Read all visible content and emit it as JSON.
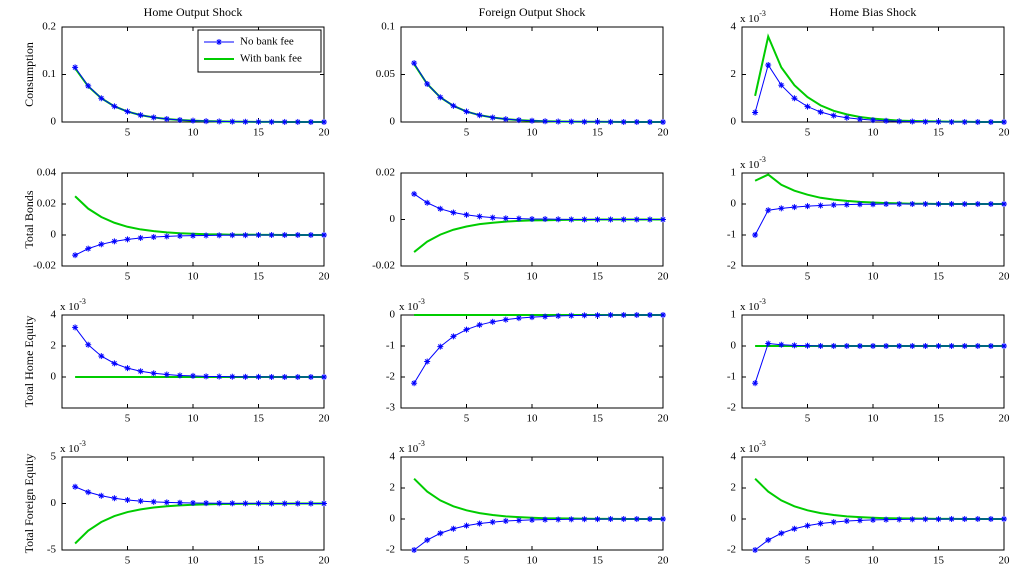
{
  "chart_data": [
    {
      "type": "line",
      "title": "Home Output Shock",
      "y_label": "Consumption",
      "legend": "upper right",
      "x": [
        1,
        2,
        3,
        4,
        5,
        6,
        7,
        8,
        9,
        10,
        11,
        12,
        13,
        14,
        15,
        16,
        17,
        18,
        19,
        20
      ],
      "xlim": [
        0,
        20
      ],
      "xticks": [
        5,
        10,
        15,
        20
      ],
      "ylim": [
        0,
        0.2
      ],
      "yticks": [
        0,
        0.1,
        0.2
      ],
      "series": [
        {
          "name": "No bank fee",
          "color": "#0000ff",
          "marker": "*",
          "values": [
            0.115,
            0.076,
            0.05,
            0.033,
            0.022,
            0.0145,
            0.0096,
            0.0063,
            0.0042,
            0.0028,
            0.0018,
            0.0012,
            0.0008,
            0.0005,
            0.0003,
            0.0002,
            0.0001,
            0.0001,
            0,
            0
          ]
        },
        {
          "name": "With bank fee",
          "color": "#00cc00",
          "values": [
            0.113,
            0.075,
            0.05,
            0.033,
            0.022,
            0.0145,
            0.0096,
            0.0063,
            0.0042,
            0.0028,
            0.0018,
            0.0012,
            0.0008,
            0.0005,
            0.0003,
            0.0002,
            0.0001,
            0.0001,
            0,
            0
          ]
        }
      ]
    },
    {
      "type": "line",
      "title": "Foreign Output Shock",
      "x": [
        1,
        2,
        3,
        4,
        5,
        6,
        7,
        8,
        9,
        10,
        11,
        12,
        13,
        14,
        15,
        16,
        17,
        18,
        19,
        20
      ],
      "xlim": [
        0,
        20
      ],
      "xticks": [
        5,
        10,
        15,
        20
      ],
      "ylim": [
        0,
        0.1
      ],
      "yticks": [
        0,
        0.05,
        0.1
      ],
      "series": [
        {
          "color": "#0000ff",
          "marker": "*",
          "values": [
            0.062,
            0.04,
            0.026,
            0.017,
            0.011,
            0.0072,
            0.0047,
            0.003,
            0.002,
            0.0013,
            0.0008,
            0.0005,
            0.0004,
            0.0002,
            0.0002,
            0.0001,
            0,
            0,
            0,
            0
          ]
        },
        {
          "color": "#00cc00",
          "values": [
            0.061,
            0.04,
            0.026,
            0.017,
            0.011,
            0.0072,
            0.0047,
            0.003,
            0.002,
            0.0013,
            0.0008,
            0.0005,
            0.0004,
            0.0002,
            0.0002,
            0.0001,
            0,
            0,
            0,
            0
          ]
        }
      ]
    },
    {
      "type": "line",
      "title": "Home Bias Shock",
      "y_scale": {
        "text": "x 10",
        "exponent": "-3"
      },
      "x": [
        1,
        2,
        3,
        4,
        5,
        6,
        7,
        8,
        9,
        10,
        11,
        12,
        13,
        14,
        15,
        16,
        17,
        18,
        19,
        20
      ],
      "xlim": [
        0,
        20
      ],
      "xticks": [
        5,
        10,
        15,
        20
      ],
      "ylim": [
        0,
        4
      ],
      "yticks": [
        0,
        2,
        4
      ],
      "series": [
        {
          "color": "#0000ff",
          "marker": "*",
          "values": [
            0.4,
            2.4,
            1.55,
            1.0,
            0.65,
            0.42,
            0.27,
            0.18,
            0.12,
            0.08,
            0.05,
            0.03,
            0.02,
            0.01,
            0.01,
            0,
            0,
            0,
            0,
            0
          ]
        },
        {
          "color": "#00cc00",
          "values": [
            1.1,
            3.6,
            2.3,
            1.55,
            1.05,
            0.7,
            0.47,
            0.32,
            0.21,
            0.14,
            0.1,
            0.06,
            0.04,
            0.03,
            0.02,
            0.01,
            0.01,
            0,
            0,
            0
          ]
        }
      ]
    },
    {
      "type": "line",
      "y_label": "Total Bonds",
      "x": [
        1,
        2,
        3,
        4,
        5,
        6,
        7,
        8,
        9,
        10,
        11,
        12,
        13,
        14,
        15,
        16,
        17,
        18,
        19,
        20
      ],
      "xlim": [
        0,
        20
      ],
      "xticks": [
        5,
        10,
        15,
        20
      ],
      "ylim": [
        -0.02,
        0.04
      ],
      "yticks": [
        -0.02,
        0,
        0.02,
        0.04
      ],
      "series": [
        {
          "color": "#0000ff",
          "marker": "*",
          "values": [
            -0.013,
            -0.0088,
            -0.006,
            -0.0041,
            -0.0028,
            -0.0019,
            -0.0013,
            -0.0009,
            -0.0006,
            -0.0004,
            -0.0003,
            -0.0002,
            -0.0001,
            -0.0001,
            0,
            0,
            0,
            0,
            0,
            0
          ]
        },
        {
          "color": "#00cc00",
          "values": [
            0.025,
            0.017,
            0.0116,
            0.0079,
            0.0053,
            0.0036,
            0.0025,
            0.0017,
            0.0011,
            0.0008,
            0.0005,
            0.0004,
            0.0002,
            0.0002,
            0.0001,
            0.0001,
            0,
            0,
            0,
            0
          ]
        }
      ]
    },
    {
      "type": "line",
      "x": [
        1,
        2,
        3,
        4,
        5,
        6,
        7,
        8,
        9,
        10,
        11,
        12,
        13,
        14,
        15,
        16,
        17,
        18,
        19,
        20
      ],
      "xlim": [
        0,
        20
      ],
      "xticks": [
        5,
        10,
        15,
        20
      ],
      "ylim": [
        -0.02,
        0.02
      ],
      "yticks": [
        -0.02,
        0,
        0.02
      ],
      "series": [
        {
          "color": "#0000ff",
          "marker": "*",
          "values": [
            0.011,
            0.0072,
            0.0046,
            0.003,
            0.002,
            0.0013,
            0.0008,
            0.0005,
            0.0004,
            0.0002,
            0.0002,
            0.0001,
            0,
            0,
            0,
            0,
            0,
            0,
            0,
            0
          ]
        },
        {
          "color": "#00cc00",
          "values": [
            -0.014,
            -0.0095,
            -0.0065,
            -0.0044,
            -0.003,
            -0.002,
            -0.0014,
            -0.0009,
            -0.0006,
            -0.0004,
            -0.0003,
            -0.0002,
            -0.0001,
            -0.0001,
            0,
            0,
            0,
            0,
            0,
            0
          ]
        }
      ]
    },
    {
      "type": "line",
      "y_scale": {
        "text": "x 10",
        "exponent": "-3"
      },
      "x": [
        1,
        2,
        3,
        4,
        5,
        6,
        7,
        8,
        9,
        10,
        11,
        12,
        13,
        14,
        15,
        16,
        17,
        18,
        19,
        20
      ],
      "xlim": [
        0,
        20
      ],
      "xticks": [
        5,
        10,
        15,
        20
      ],
      "ylim": [
        -2,
        1
      ],
      "yticks": [
        -2,
        -1,
        0,
        1
      ],
      "series": [
        {
          "color": "#0000ff",
          "marker": "*",
          "values": [
            -1,
            -0.2,
            -0.14,
            -0.1,
            -0.07,
            -0.05,
            -0.03,
            -0.02,
            -0.01,
            -0.01,
            0,
            0,
            0,
            0,
            0,
            0,
            0,
            0,
            0,
            0
          ]
        },
        {
          "color": "#00cc00",
          "values": [
            0.75,
            0.95,
            0.62,
            0.43,
            0.3,
            0.2,
            0.14,
            0.1,
            0.07,
            0.05,
            0.03,
            0.02,
            0.01,
            0.01,
            0,
            0,
            0,
            0,
            0,
            0
          ]
        }
      ]
    },
    {
      "type": "line",
      "y_label": "Total Home Equity",
      "y_scale": {
        "text": "x 10",
        "exponent": "-3"
      },
      "x": [
        1,
        2,
        3,
        4,
        5,
        6,
        7,
        8,
        9,
        10,
        11,
        12,
        13,
        14,
        15,
        16,
        17,
        18,
        19,
        20
      ],
      "xlim": [
        0,
        20
      ],
      "xticks": [
        5,
        10,
        15,
        20
      ],
      "ylim": [
        -2,
        4
      ],
      "yticks": [
        0,
        2,
        4
      ],
      "series": [
        {
          "color": "#0000ff",
          "marker": "*",
          "values": [
            3.2,
            2.08,
            1.35,
            0.88,
            0.57,
            0.37,
            0.24,
            0.16,
            0.1,
            0.07,
            0.04,
            0.03,
            0.02,
            0.01,
            0.01,
            0,
            0,
            0,
            0,
            0
          ]
        },
        {
          "color": "#00cc00",
          "values": [
            0,
            0,
            0,
            0,
            0,
            0,
            0,
            0,
            0,
            0,
            0,
            0,
            0,
            0,
            0,
            0,
            0,
            0,
            0,
            0
          ]
        }
      ]
    },
    {
      "type": "line",
      "y_scale": {
        "text": "x 10",
        "exponent": "-3"
      },
      "x": [
        1,
        2,
        3,
        4,
        5,
        6,
        7,
        8,
        9,
        10,
        11,
        12,
        13,
        14,
        15,
        16,
        17,
        18,
        19,
        20
      ],
      "xlim": [
        0,
        20
      ],
      "xticks": [
        5,
        10,
        15,
        20
      ],
      "ylim": [
        -3,
        0
      ],
      "yticks": [
        -3,
        -2,
        -1,
        0
      ],
      "series": [
        {
          "color": "#0000ff",
          "marker": "*",
          "values": [
            -2.2,
            -1.5,
            -1.02,
            -0.69,
            -0.47,
            -0.32,
            -0.22,
            -0.15,
            -0.1,
            -0.07,
            -0.05,
            -0.03,
            -0.02,
            -0.01,
            -0.01,
            0,
            0,
            0,
            0,
            0
          ]
        },
        {
          "color": "#00cc00",
          "values": [
            0,
            0,
            0,
            0,
            0,
            0,
            0,
            0,
            0,
            0,
            0,
            0,
            0,
            0,
            0,
            0,
            0,
            0,
            0,
            0
          ]
        }
      ]
    },
    {
      "type": "line",
      "y_scale": {
        "text": "x 10",
        "exponent": "-3"
      },
      "x": [
        1,
        2,
        3,
        4,
        5,
        6,
        7,
        8,
        9,
        10,
        11,
        12,
        13,
        14,
        15,
        16,
        17,
        18,
        19,
        20
      ],
      "xlim": [
        0,
        20
      ],
      "xticks": [
        5,
        10,
        15,
        20
      ],
      "ylim": [
        -2,
        1
      ],
      "yticks": [
        -2,
        -1,
        0,
        1
      ],
      "series": [
        {
          "color": "#0000ff",
          "marker": "*",
          "values": [
            -1.2,
            0.08,
            0.04,
            0.02,
            0.01,
            0,
            0,
            0,
            0,
            0,
            0,
            0,
            0,
            0,
            0,
            0,
            0,
            0,
            0,
            0
          ]
        },
        {
          "color": "#00cc00",
          "values": [
            0,
            0,
            0,
            0,
            0,
            0,
            0,
            0,
            0,
            0,
            0,
            0,
            0,
            0,
            0,
            0,
            0,
            0,
            0,
            0
          ]
        }
      ]
    },
    {
      "type": "line",
      "y_label": "Total Foreign Equity",
      "y_scale": {
        "text": "x 10",
        "exponent": "-3"
      },
      "x": [
        1,
        2,
        3,
        4,
        5,
        6,
        7,
        8,
        9,
        10,
        11,
        12,
        13,
        14,
        15,
        16,
        17,
        18,
        19,
        20
      ],
      "xlim": [
        0,
        20
      ],
      "xticks": [
        5,
        10,
        15,
        20
      ],
      "ylim": [
        -5,
        5
      ],
      "yticks": [
        -5,
        0,
        5
      ],
      "series": [
        {
          "color": "#0000ff",
          "marker": "*",
          "values": [
            1.8,
            1.22,
            0.83,
            0.57,
            0.38,
            0.26,
            0.18,
            0.12,
            0.08,
            0.06,
            0.04,
            0.03,
            0.02,
            0.01,
            0.01,
            0,
            0,
            0,
            0,
            0
          ]
        },
        {
          "color": "#00cc00",
          "values": [
            -4.3,
            -2.92,
            -1.99,
            -1.35,
            -0.92,
            -0.63,
            -0.43,
            -0.29,
            -0.2,
            -0.13,
            -0.09,
            -0.06,
            -0.04,
            -0.03,
            -0.02,
            -0.01,
            -0.01,
            0,
            0,
            0
          ]
        }
      ]
    },
    {
      "type": "line",
      "y_scale": {
        "text": "x 10",
        "exponent": "-3"
      },
      "x": [
        1,
        2,
        3,
        4,
        5,
        6,
        7,
        8,
        9,
        10,
        11,
        12,
        13,
        14,
        15,
        16,
        17,
        18,
        19,
        20
      ],
      "xlim": [
        0,
        20
      ],
      "xticks": [
        5,
        10,
        15,
        20
      ],
      "ylim": [
        -2,
        4
      ],
      "yticks": [
        -2,
        0,
        2,
        4
      ],
      "series": [
        {
          "color": "#0000ff",
          "marker": "*",
          "values": [
            -2,
            -1.36,
            -0.92,
            -0.63,
            -0.43,
            -0.29,
            -0.2,
            -0.13,
            -0.09,
            -0.06,
            -0.04,
            -0.03,
            -0.02,
            -0.01,
            -0.01,
            0,
            0,
            0,
            0,
            0
          ]
        },
        {
          "color": "#00cc00",
          "values": [
            2.6,
            1.77,
            1.2,
            0.82,
            0.56,
            0.38,
            0.26,
            0.17,
            0.12,
            0.08,
            0.05,
            0.04,
            0.03,
            0.02,
            0.01,
            0.01,
            0,
            0,
            0,
            0
          ]
        }
      ]
    },
    {
      "type": "line",
      "y_scale": {
        "text": "x 10",
        "exponent": "-3"
      },
      "x": [
        1,
        2,
        3,
        4,
        5,
        6,
        7,
        8,
        9,
        10,
        11,
        12,
        13,
        14,
        15,
        16,
        17,
        18,
        19,
        20
      ],
      "xlim": [
        0,
        20
      ],
      "xticks": [
        5,
        10,
        15,
        20
      ],
      "ylim": [
        -2,
        4
      ],
      "yticks": [
        -2,
        0,
        2,
        4
      ],
      "series": [
        {
          "color": "#0000ff",
          "marker": "*",
          "values": [
            -2,
            -1.36,
            -0.92,
            -0.63,
            -0.43,
            -0.29,
            -0.2,
            -0.13,
            -0.09,
            -0.06,
            -0.04,
            -0.03,
            -0.02,
            -0.01,
            -0.01,
            0,
            0,
            0,
            0,
            0
          ]
        },
        {
          "color": "#00cc00",
          "values": [
            2.6,
            1.77,
            1.2,
            0.82,
            0.56,
            0.38,
            0.26,
            0.17,
            0.12,
            0.08,
            0.05,
            0.04,
            0.03,
            0.02,
            0.01,
            0.01,
            0,
            0,
            0,
            0
          ]
        }
      ]
    }
  ]
}
